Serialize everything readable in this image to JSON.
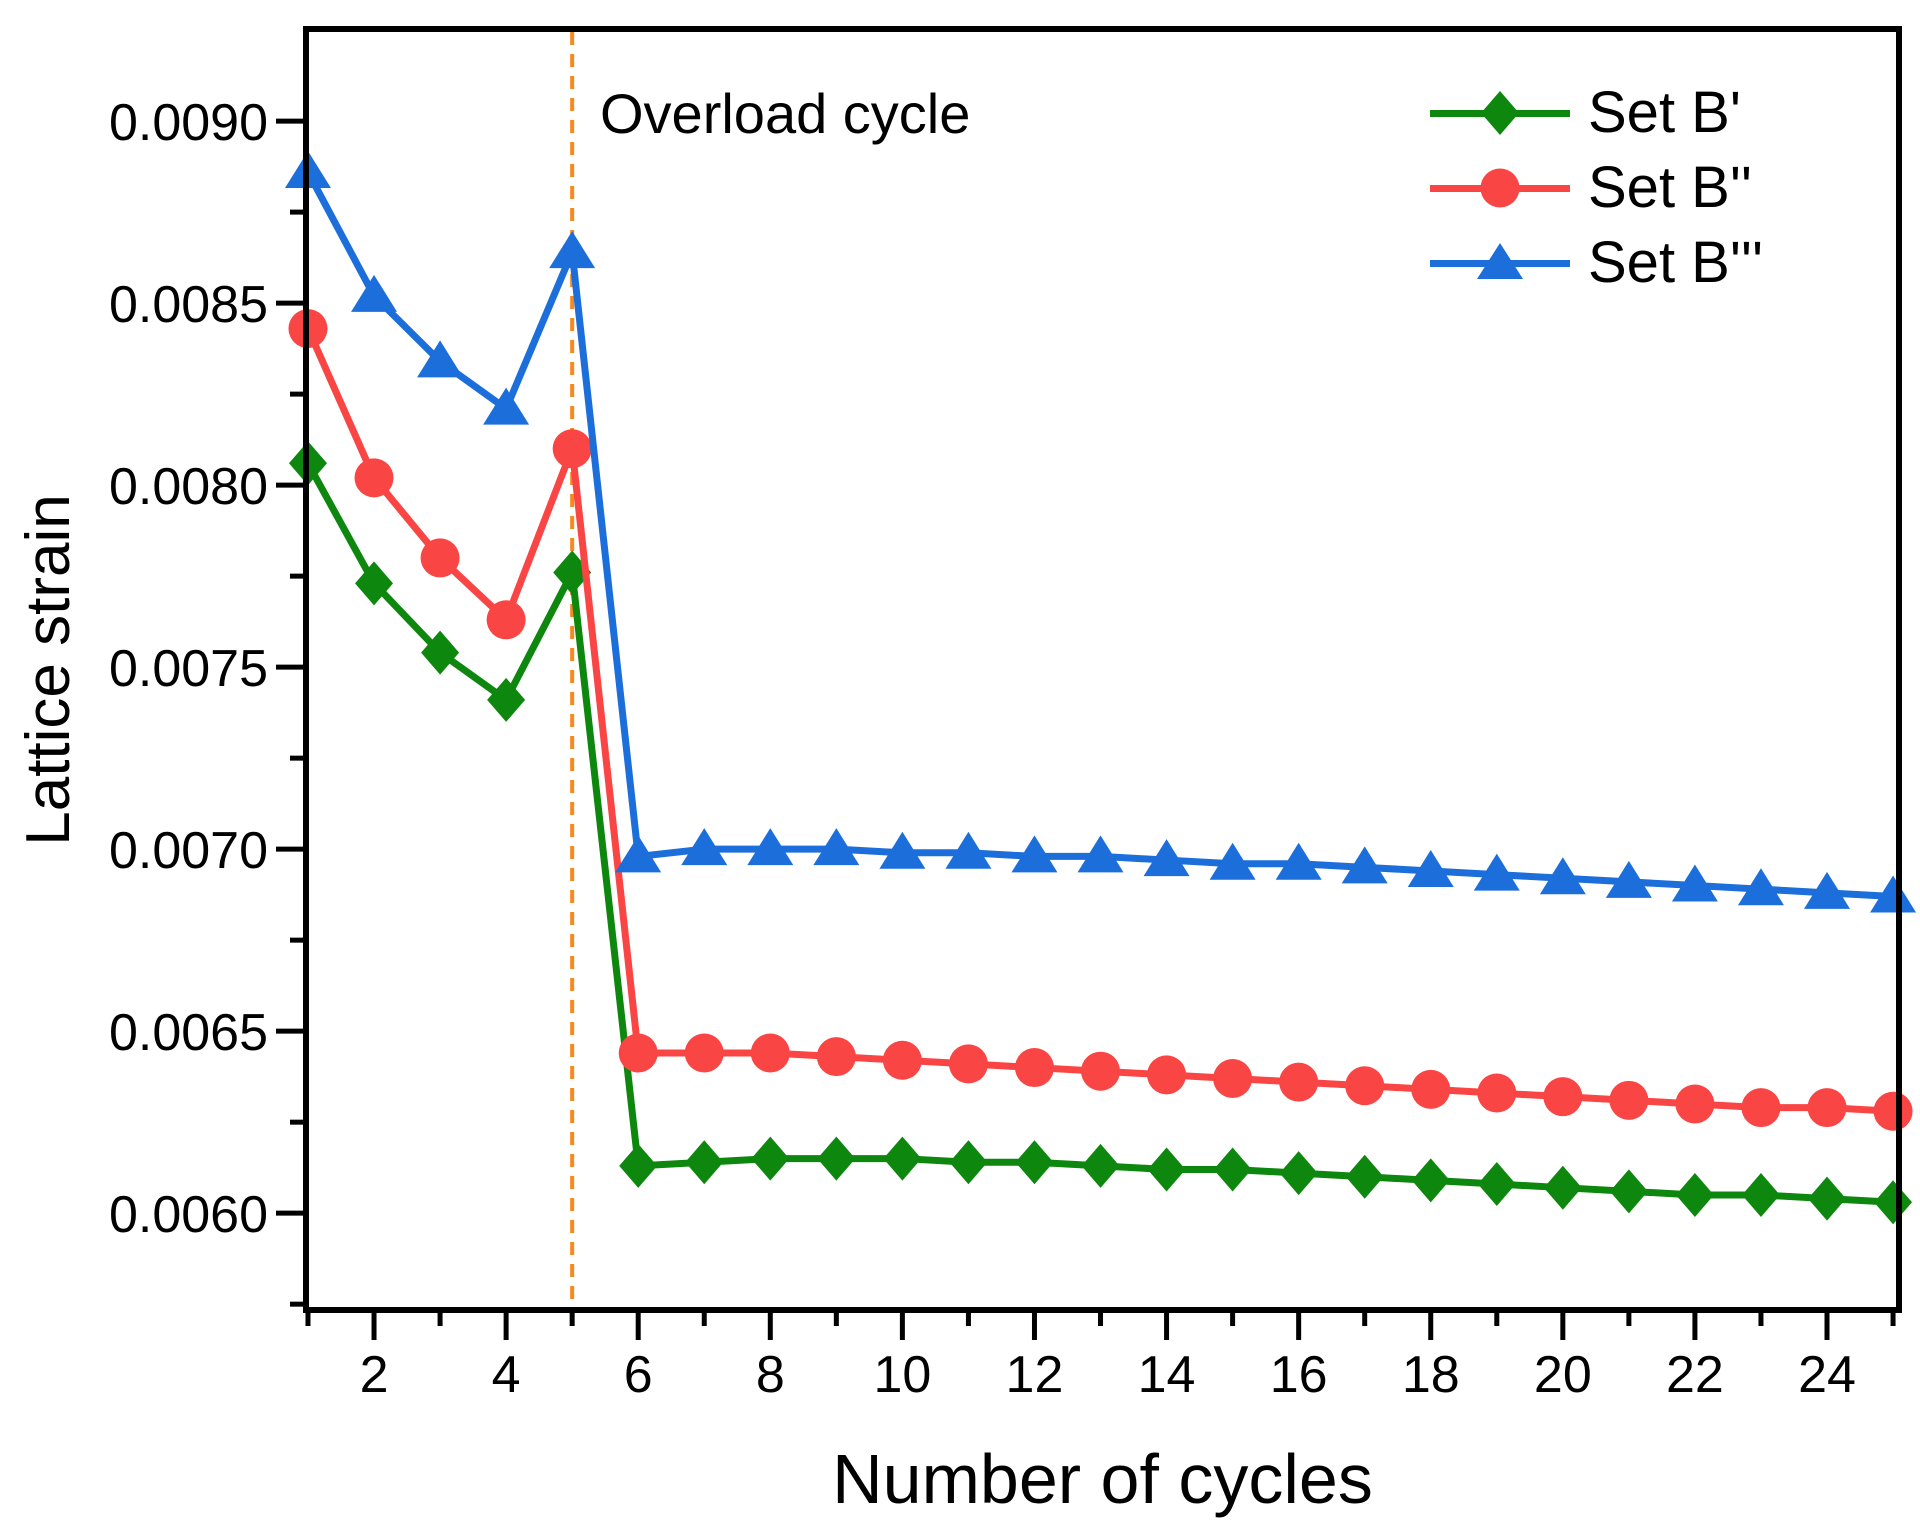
{
  "page": {
    "background": "#ffffff"
  },
  "chart_data": {
    "type": "line",
    "title": "",
    "xlabel": "Number of cycles",
    "ylabel": "Lattice strain",
    "xlim": [
      1,
      25
    ],
    "ylim": [
      0.00573,
      0.00925
    ],
    "grid": false,
    "legend_position": "top-right-inside",
    "x": [
      1,
      2,
      3,
      4,
      5,
      6,
      7,
      8,
      9,
      10,
      11,
      12,
      13,
      14,
      15,
      16,
      17,
      18,
      19,
      20,
      21,
      22,
      23,
      24,
      25
    ],
    "series": [
      {
        "id": "set-b-prime",
        "name": "Set B'",
        "marker": "diamond",
        "color": "#0d870d",
        "values": [
          0.00806,
          0.00773,
          0.00754,
          0.00741,
          0.00776,
          0.00613,
          0.00614,
          0.00615,
          0.00615,
          0.00615,
          0.00614,
          0.00614,
          0.00613,
          0.00612,
          0.00612,
          0.00611,
          0.0061,
          0.00609,
          0.00608,
          0.00607,
          0.00606,
          0.00605,
          0.00605,
          0.00604,
          0.00603
        ]
      },
      {
        "id": "set-b-double-prime",
        "name": "Set B''",
        "marker": "circle",
        "color": "#fa4545",
        "values": [
          0.00843,
          0.00802,
          0.0078,
          0.00763,
          0.0081,
          0.00644,
          0.00644,
          0.00644,
          0.00643,
          0.00642,
          0.00641,
          0.0064,
          0.00639,
          0.00638,
          0.00637,
          0.00636,
          0.00635,
          0.00634,
          0.00633,
          0.00632,
          0.00631,
          0.0063,
          0.00629,
          0.00629,
          0.00628
        ]
      },
      {
        "id": "set-b-triple-prime",
        "name": "Set B'''",
        "marker": "triangle",
        "color": "#1c6fdb",
        "values": [
          0.00886,
          0.00852,
          0.00834,
          0.00821,
          0.00864,
          0.00698,
          0.007,
          0.007,
          0.007,
          0.00699,
          0.00699,
          0.00698,
          0.00698,
          0.00697,
          0.00696,
          0.00696,
          0.00695,
          0.00694,
          0.00693,
          0.00692,
          0.00691,
          0.0069,
          0.00689,
          0.00688,
          0.00687
        ]
      }
    ],
    "vline": {
      "x": 5,
      "label": "Overload cycle",
      "style": "dashed",
      "color": "#f7891f"
    }
  },
  "axes": {
    "x": {
      "major_ticks": [
        2,
        4,
        6,
        8,
        10,
        12,
        14,
        16,
        18,
        20,
        22,
        24
      ],
      "major_tick_labels": [
        "2",
        "4",
        "6",
        "8",
        "10",
        "12",
        "14",
        "16",
        "18",
        "20",
        "22",
        "24"
      ],
      "minor_ticks": [
        1,
        3,
        5,
        7,
        9,
        11,
        13,
        15,
        17,
        19,
        21,
        23,
        25
      ]
    },
    "y": {
      "major_ticks": [
        0.006,
        0.0065,
        0.007,
        0.0075,
        0.008,
        0.0085,
        0.009
      ],
      "major_tick_labels": [
        "0.0060",
        "0.0065",
        "0.0070",
        "0.0075",
        "0.0080",
        "0.0085",
        "0.0090"
      ],
      "minor_ticks": [
        0.00575,
        0.00625,
        0.00675,
        0.00725,
        0.00775,
        0.00825,
        0.00875
      ]
    }
  }
}
